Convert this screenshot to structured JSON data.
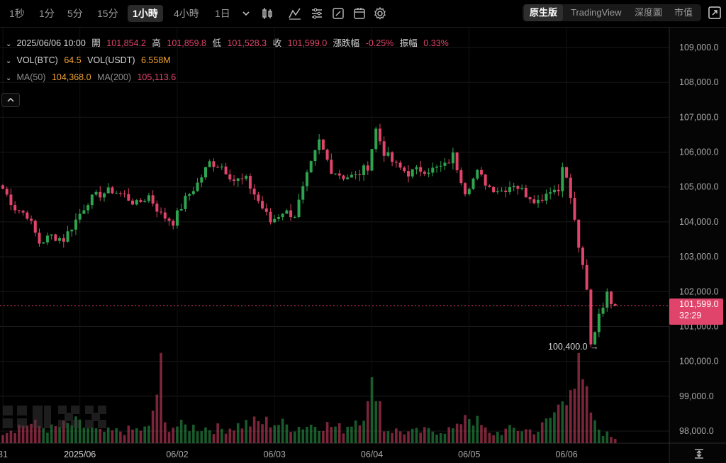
{
  "toolbar": {
    "timeframes": [
      "1秒",
      "1分",
      "5分",
      "15分",
      "1小時",
      "4小時",
      "1日"
    ],
    "active_timeframe": "1小時",
    "views": [
      "原生版",
      "TradingView",
      "深度圖",
      "市值"
    ],
    "active_view": "原生版"
  },
  "legend": {
    "datetime": "2025/06/06 10:00",
    "open_label": "開",
    "open": "101,854.2",
    "high_label": "高",
    "high": "101,859.8",
    "low_label": "低",
    "low": "101,528.3",
    "close_label": "收",
    "close": "101,599.0",
    "change_label": "漲跌幅",
    "change": "-0.25%",
    "amplitude_label": "振幅",
    "amplitude": "0.33%",
    "vol_btc_label": "VOL(BTC)",
    "vol_btc": "64.5",
    "vol_usdt_label": "VOL(USDT)",
    "vol_usdt": "6.558M",
    "ma50_label": "MA(50)",
    "ma50": "104,368.0",
    "ma200_label": "MA(200)",
    "ma200": "105,113.6"
  },
  "price_tag": {
    "price": "101,599.0",
    "countdown": "32:29"
  },
  "min_marker": {
    "label": "100,400.0 →"
  },
  "colors": {
    "up": "#2ea44f",
    "down": "#e0446a",
    "background": "#000000",
    "grid": "#1a1a1a",
    "accent": "#e0446a"
  },
  "chart_data": {
    "type": "candlestick",
    "title": "",
    "ylim": [
      97700,
      109700
    ],
    "y_ticks": [
      98000,
      99000,
      100000,
      101000,
      102000,
      103000,
      104000,
      105000,
      106000,
      107000,
      108000,
      109000
    ],
    "y_tick_labels": [
      "98,000.0",
      "99,000.0",
      "100,000.0",
      "101,000.0",
      "102,000.0",
      "103,000.0",
      "104,000.0",
      "105,000.0",
      "106,000.0",
      "107,000.0",
      "108,000.0",
      "109,000.0"
    ],
    "x_tick_labels": [
      {
        "label": "31",
        "index": 0
      },
      {
        "label": "2025/06",
        "index": 19
      },
      {
        "label": "06/02",
        "index": 43
      },
      {
        "label": "06/03",
        "index": 67
      },
      {
        "label": "06/04",
        "index": 91
      },
      {
        "label": "06/05",
        "index": 115
      },
      {
        "label": "06/06",
        "index": 139
      }
    ],
    "current_price": 101599,
    "min_marker_value": 100400,
    "min_marker_index": 145,
    "close_anchors": [
      [
        0,
        104950
      ],
      [
        3,
        104400
      ],
      [
        6,
        104200
      ],
      [
        9,
        103400
      ],
      [
        12,
        103600
      ],
      [
        15,
        103500
      ],
      [
        18,
        104050
      ],
      [
        21,
        104600
      ],
      [
        24,
        104800
      ],
      [
        27,
        104900
      ],
      [
        30,
        104750
      ],
      [
        33,
        104500
      ],
      [
        36,
        104750
      ],
      [
        39,
        104200
      ],
      [
        42,
        104000
      ],
      [
        45,
        104650
      ],
      [
        48,
        105100
      ],
      [
        51,
        105700
      ],
      [
        54,
        105600
      ],
      [
        57,
        105200
      ],
      [
        60,
        105200
      ],
      [
        63,
        104600
      ],
      [
        66,
        104000
      ],
      [
        69,
        104300
      ],
      [
        72,
        104200
      ],
      [
        75,
        105300
      ],
      [
        78,
        106300
      ],
      [
        81,
        105500
      ],
      [
        84,
        105300
      ],
      [
        87,
        105300
      ],
      [
        90,
        105600
      ],
      [
        92,
        106650
      ],
      [
        94,
        106000
      ],
      [
        97,
        105600
      ],
      [
        100,
        105400
      ],
      [
        103,
        105500
      ],
      [
        106,
        105500
      ],
      [
        109,
        105600
      ],
      [
        111,
        105900
      ],
      [
        114,
        104900
      ],
      [
        117,
        105400
      ],
      [
        120,
        105000
      ],
      [
        123,
        104900
      ],
      [
        126,
        105100
      ],
      [
        129,
        104800
      ],
      [
        132,
        104600
      ],
      [
        135,
        104950
      ],
      [
        137,
        104900
      ],
      [
        138,
        105700
      ],
      [
        140,
        104700
      ],
      [
        142,
        103300
      ],
      [
        144,
        102000
      ],
      [
        145,
        100450
      ],
      [
        146,
        100900
      ],
      [
        147,
        101400
      ],
      [
        149,
        101900
      ],
      [
        151,
        101599
      ]
    ],
    "volume_anchors": [
      [
        0,
        35
      ],
      [
        6,
        55
      ],
      [
        12,
        40
      ],
      [
        18,
        55
      ],
      [
        24,
        30
      ],
      [
        30,
        35
      ],
      [
        36,
        40
      ],
      [
        39,
        195
      ],
      [
        40,
        50
      ],
      [
        48,
        45
      ],
      [
        54,
        40
      ],
      [
        60,
        55
      ],
      [
        66,
        60
      ],
      [
        72,
        45
      ],
      [
        78,
        55
      ],
      [
        84,
        40
      ],
      [
        90,
        100
      ],
      [
        92,
        190
      ],
      [
        94,
        40
      ],
      [
        100,
        30
      ],
      [
        106,
        35
      ],
      [
        112,
        40
      ],
      [
        114,
        90
      ],
      [
        120,
        25
      ],
      [
        126,
        40
      ],
      [
        132,
        35
      ],
      [
        135,
        70
      ],
      [
        137,
        100
      ],
      [
        139,
        160
      ],
      [
        140,
        210
      ],
      [
        141,
        170
      ],
      [
        142,
        190
      ],
      [
        143,
        150
      ],
      [
        144,
        120
      ],
      [
        145,
        90
      ],
      [
        146,
        50
      ],
      [
        148,
        30
      ],
      [
        151,
        15
      ]
    ]
  }
}
